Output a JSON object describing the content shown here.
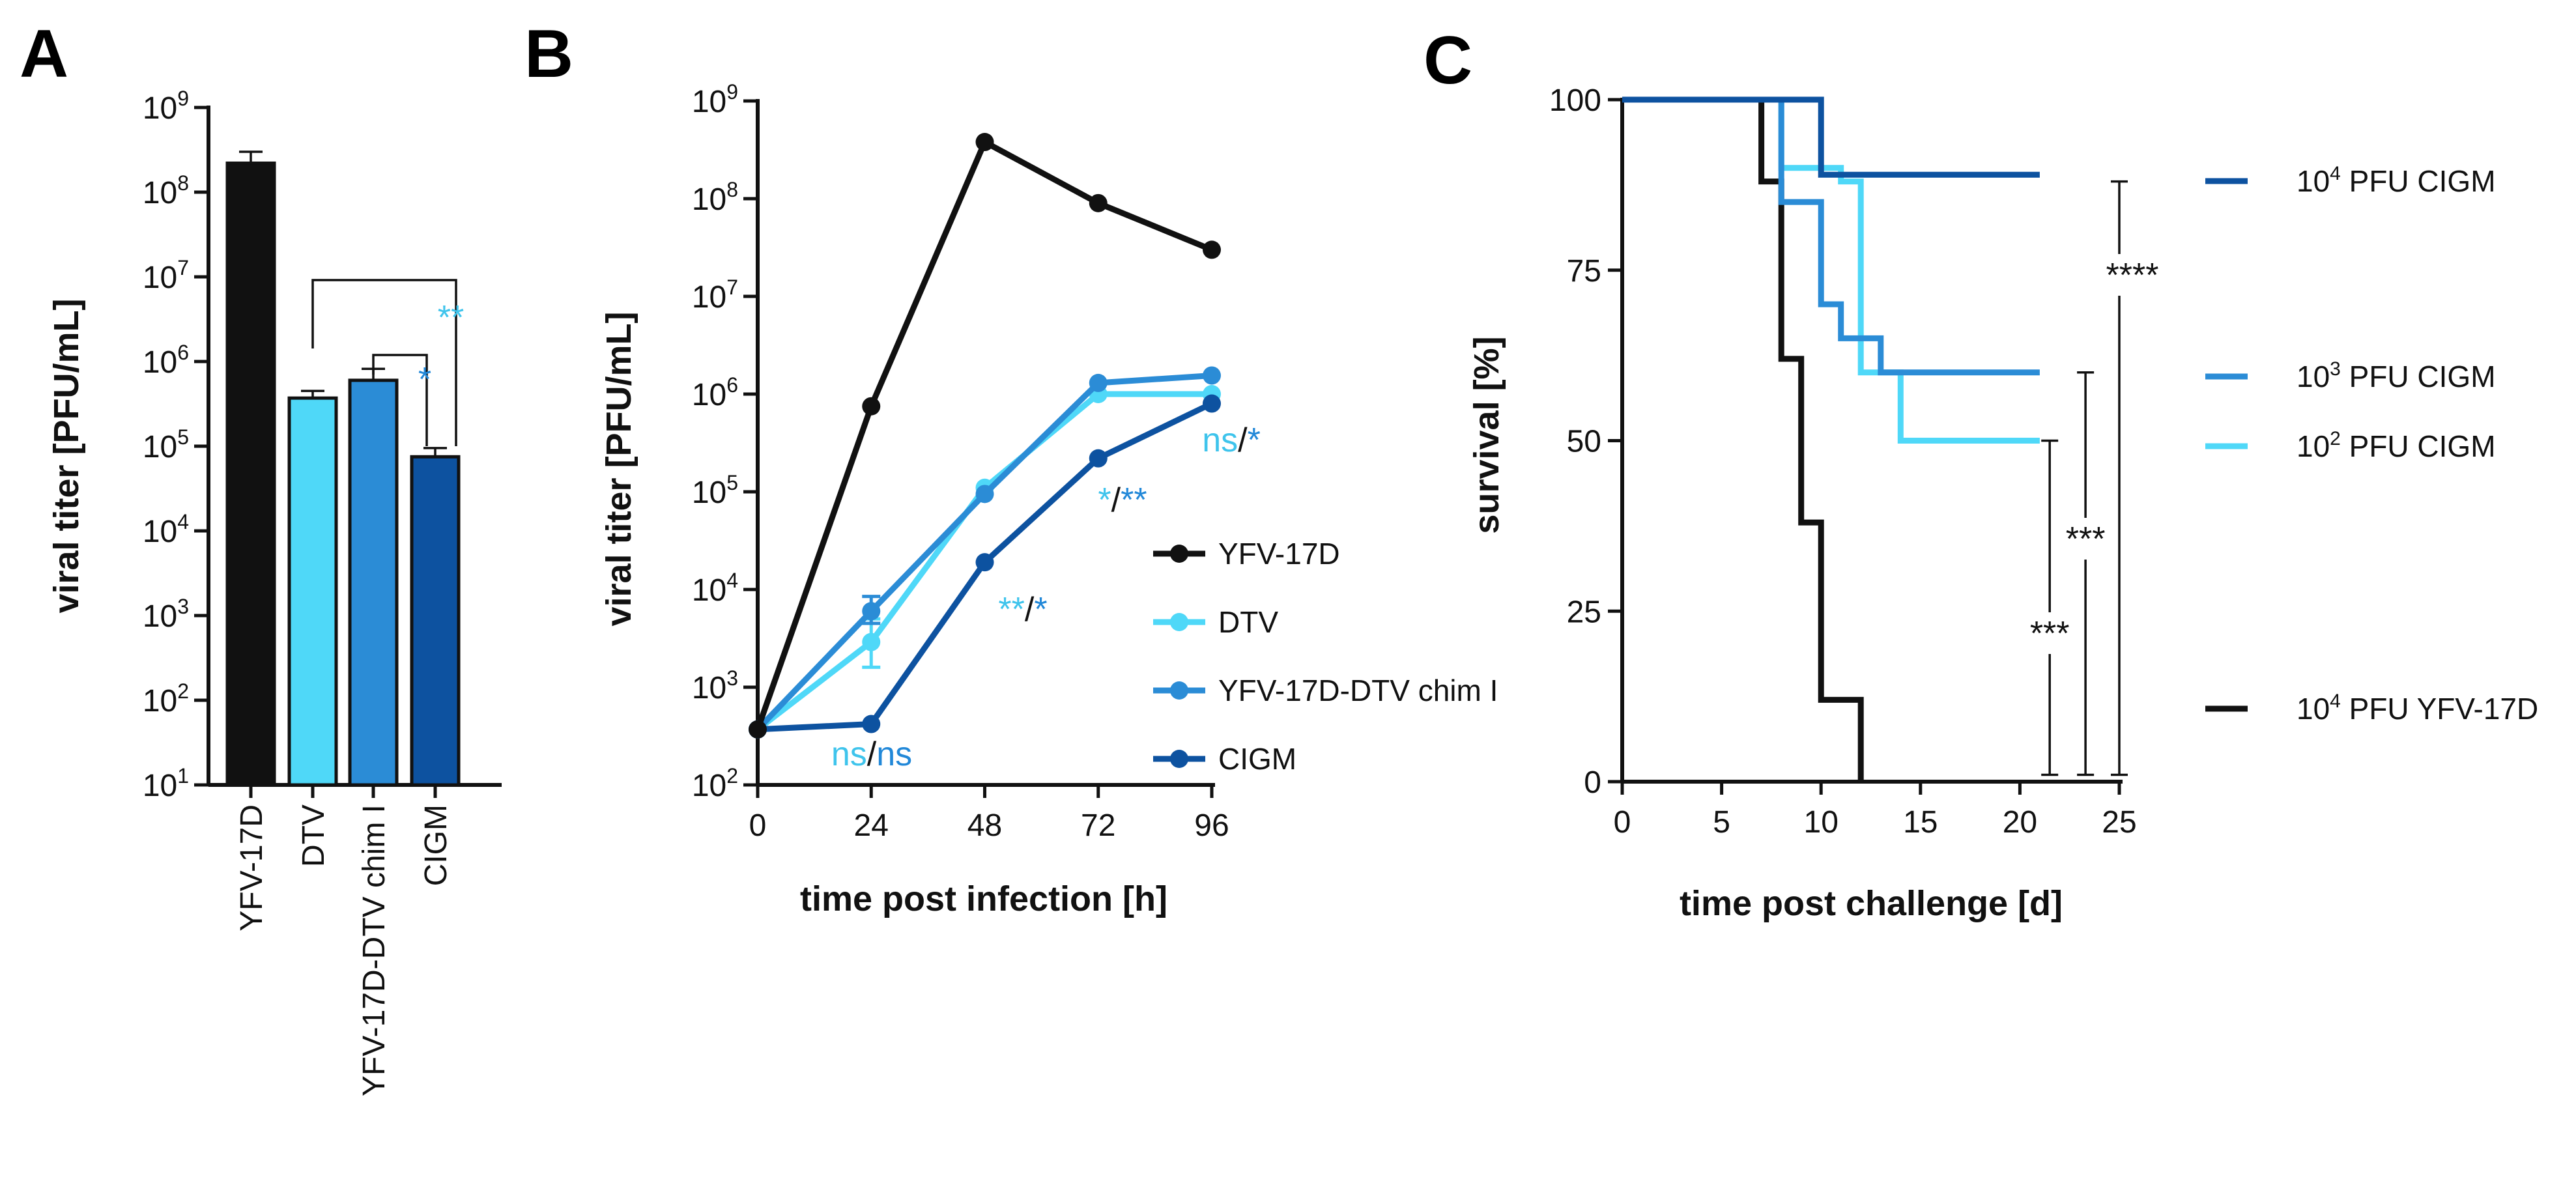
{
  "colors": {
    "black": "#111111",
    "light_blue": "#4FD8F8",
    "mid_blue": "#2B8CD6",
    "dark_blue": "#0D52A0",
    "cyan_sig": "#3FC4EC",
    "blue_sig": "#2288D8"
  },
  "panels": {
    "a": {
      "letter": "A"
    },
    "b": {
      "letter": "B"
    },
    "c": {
      "letter": "C"
    }
  },
  "chart_data": [
    {
      "id": "A",
      "type": "bar",
      "title": "",
      "ylabel": "viral titer [PFU/mL]",
      "xlabel": "",
      "yscale": "log",
      "ylim": [
        10,
        1000000000
      ],
      "ytick_base": "10",
      "ytick_exponents": [
        "1",
        "2",
        "3",
        "4",
        "5",
        "6",
        "7",
        "8",
        "9"
      ],
      "categories": [
        "YFV-17D",
        "DTV",
        "YFV-17D-DTV chim I",
        "CIGM"
      ],
      "values": [
        220000000,
        370000,
        600000,
        75000
      ],
      "errors_upper": [
        300000000,
        450000,
        820000,
        95000
      ],
      "bar_colors": [
        "#111111",
        "#4FD8F8",
        "#2B8CD6",
        "#0D52A0"
      ],
      "annotations": [
        {
          "label": "**",
          "color": "#3FC4EC",
          "from": "DTV",
          "to": "CIGM"
        },
        {
          "label": "*",
          "color": "#2288D8",
          "from": "YFV-17D-DTV chim I",
          "to": "CIGM"
        }
      ]
    },
    {
      "id": "B",
      "type": "line",
      "title": "",
      "xlabel": "time post infection [h]",
      "ylabel": "viral titer [PFU/mL]",
      "yscale": "log",
      "ylim": [
        100,
        1000000000
      ],
      "xlim": [
        0,
        96
      ],
      "x": [
        0,
        24,
        48,
        72,
        96
      ],
      "xtick_labels": [
        "0",
        "24",
        "48",
        "72",
        "96"
      ],
      "ytick_base": "10",
      "ytick_exponents": [
        "2",
        "3",
        "4",
        "5",
        "6",
        "7",
        "8",
        "9"
      ],
      "series": [
        {
          "name": "YFV-17D",
          "color": "#111111",
          "values": [
            370,
            750000,
            380000000,
            90000000,
            30000000
          ]
        },
        {
          "name": "DTV",
          "color": "#4FD8F8",
          "values": [
            370,
            2900,
            110000,
            1000000,
            1000000
          ],
          "err_lo": [
            0,
            1600,
            0,
            0,
            0
          ],
          "err_hi": [
            0,
            5000,
            0,
            0,
            0
          ]
        },
        {
          "name": "YFV-17D-DTV chim I",
          "color": "#2B8CD6",
          "values": [
            370,
            6000,
            95000,
            1300000,
            1550000
          ],
          "err_lo": [
            0,
            4500,
            0,
            0,
            0
          ],
          "err_hi": [
            0,
            8500,
            0,
            0,
            0
          ]
        },
        {
          "name": "CIGM",
          "color": "#0D52A0",
          "values": [
            370,
            420,
            19000,
            220000,
            800000
          ]
        }
      ],
      "annotations": [
        {
          "parts": [
            {
              "text": "ns",
              "color": "#3FC4EC"
            },
            {
              "text": "/",
              "color": "#111111"
            },
            {
              "text": "ns",
              "color": "#2288D8"
            }
          ],
          "at": "24h"
        },
        {
          "parts": [
            {
              "text": "**",
              "color": "#3FC4EC"
            },
            {
              "text": "/",
              "color": "#111111"
            },
            {
              "text": "*",
              "color": "#2288D8"
            }
          ],
          "at": "48h"
        },
        {
          "parts": [
            {
              "text": "*",
              "color": "#3FC4EC"
            },
            {
              "text": "/",
              "color": "#111111"
            },
            {
              "text": "**",
              "color": "#2288D8"
            }
          ],
          "at": "72h"
        },
        {
          "parts": [
            {
              "text": "ns",
              "color": "#3FC4EC"
            },
            {
              "text": "/",
              "color": "#111111"
            },
            {
              "text": "*",
              "color": "#2288D8"
            }
          ],
          "at": "96h"
        }
      ]
    },
    {
      "id": "C",
      "type": "line",
      "step": true,
      "title": "",
      "xlabel": "time post challenge [d]",
      "ylabel": "survival [%]",
      "xlim": [
        0,
        25
      ],
      "ylim": [
        0,
        100
      ],
      "xticks": [
        0,
        5,
        10,
        15,
        20,
        25
      ],
      "xtick_labels": [
        "0",
        "5",
        "10",
        "15",
        "20",
        "25"
      ],
      "yticks": [
        0,
        25,
        50,
        75,
        100
      ],
      "ytick_labels": [
        "0",
        "25",
        "50",
        "75",
        "100"
      ],
      "series": [
        {
          "name_base": "10",
          "name_exp": "4",
          "name_rest": " PFU CIGM",
          "color": "#0D52A0",
          "steps": [
            [
              0,
              100
            ],
            [
              10,
              100
            ],
            [
              10,
              89
            ],
            [
              21,
              89
            ]
          ]
        },
        {
          "name_base": "10",
          "name_exp": "3",
          "name_rest": " PFU CIGM",
          "color": "#2B8CD6",
          "steps": [
            [
              0,
              100
            ],
            [
              8,
              100
            ],
            [
              8,
              85
            ],
            [
              10,
              85
            ],
            [
              10,
              70
            ],
            [
              11,
              70
            ],
            [
              11,
              65
            ],
            [
              13,
              65
            ],
            [
              13,
              60
            ],
            [
              21,
              60
            ]
          ]
        },
        {
          "name_base": "10",
          "name_exp": "2",
          "name_rest": " PFU CIGM",
          "color": "#4FD8F8",
          "steps": [
            [
              0,
              100
            ],
            [
              8,
              100
            ],
            [
              8,
              90
            ],
            [
              11,
              90
            ],
            [
              11,
              88
            ],
            [
              12,
              88
            ],
            [
              12,
              80
            ],
            [
              12,
              80
            ],
            [
              12,
              60
            ],
            [
              14,
              60
            ],
            [
              14,
              50
            ],
            [
              21,
              50
            ]
          ]
        },
        {
          "name_base": "10",
          "name_exp": "4",
          "name_rest": " PFU YFV-17D",
          "color": "#111111",
          "steps": [
            [
              0,
              100
            ],
            [
              7,
              100
            ],
            [
              7,
              88
            ],
            [
              8,
              88
            ],
            [
              8,
              62
            ],
            [
              9,
              62
            ],
            [
              9,
              38
            ],
            [
              10,
              38
            ],
            [
              10,
              12
            ],
            [
              12,
              12
            ],
            [
              12,
              0
            ]
          ]
        }
      ],
      "annotations": [
        {
          "label": "***",
          "x": 21.5,
          "y_from": 1,
          "y_to": 50
        },
        {
          "label": "***",
          "x": 23.3,
          "y_from": 1,
          "y_to": 60
        },
        {
          "label": "****",
          "x": 25,
          "y_from": 1,
          "y_to": 88
        }
      ]
    }
  ]
}
